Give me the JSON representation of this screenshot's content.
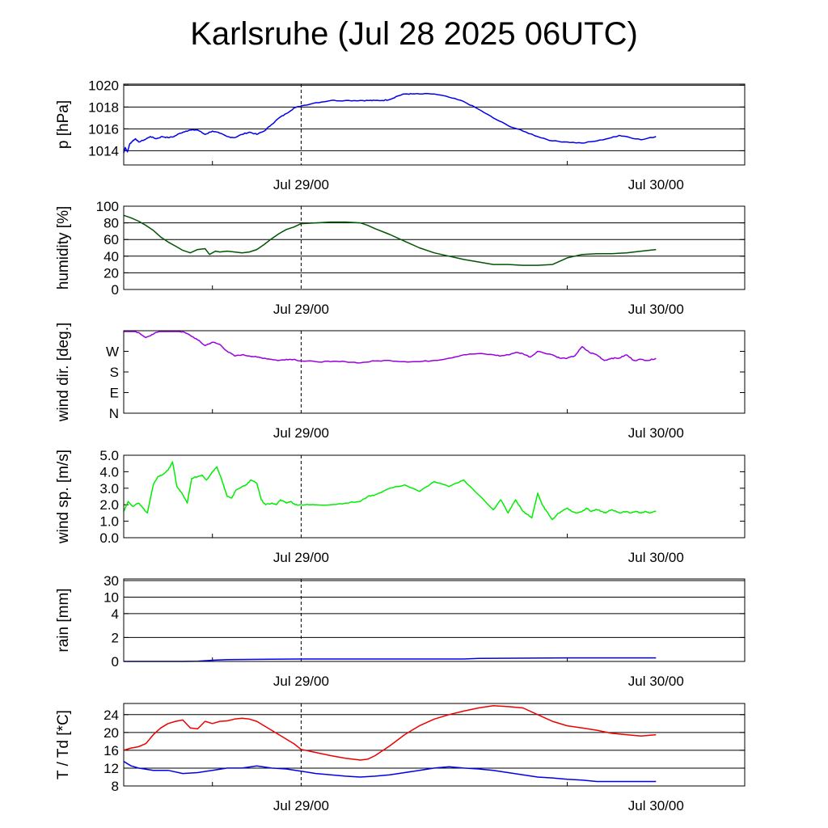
{
  "title": "Karlsruhe (Jul 28 2025 06UTC)",
  "chart_data": [
    {
      "type": "line",
      "ylabel": "p [hPa]",
      "x_labels": [
        {
          "x": 18,
          "label": "Jul 29/00"
        },
        {
          "x": 42,
          "label": "Jul 30/00"
        }
      ],
      "x_minor_ticks": [
        12,
        36
      ],
      "xlim": [
        6,
        48
      ],
      "ylim": [
        1012.7,
        1020.1
      ],
      "yticks": [
        {
          "v": 1014,
          "label": "1014"
        },
        {
          "v": 1016,
          "label": "1016"
        },
        {
          "v": 1018,
          "label": "1018"
        },
        {
          "v": 1020,
          "label": "1020"
        }
      ],
      "grid": [
        1014,
        1016,
        1018,
        1020
      ],
      "series": [
        {
          "color": "#0000ee",
          "style": "noisy",
          "x": [
            6.0,
            6.1,
            6.25,
            6.4,
            6.6,
            6.8,
            7.0,
            7.4,
            7.8,
            8.2,
            8.6,
            9.0,
            9.4,
            9.8,
            10.2,
            10.6,
            11.0,
            11.5,
            12.0,
            12.5,
            13.0,
            13.5,
            14.0,
            14.5,
            15.0,
            15.5,
            16.0,
            16.5,
            17.0,
            17.5,
            18.0,
            19.0,
            20.0,
            21.0,
            22.0,
            22.5,
            23.0,
            23.5,
            24.0,
            24.5,
            25.0,
            25.5,
            26.0,
            27.0,
            28.0,
            29.0,
            30.0,
            31.0,
            32.0,
            33.0,
            34.0,
            35.0,
            36.0,
            37.0,
            38.0,
            39.0,
            39.5,
            40.0,
            41.0,
            42.0
          ],
          "y": [
            1013.8,
            1014.3,
            1013.9,
            1014.6,
            1014.9,
            1015.1,
            1014.8,
            1015.0,
            1015.3,
            1015.1,
            1015.3,
            1015.2,
            1015.3,
            1015.6,
            1015.8,
            1015.9,
            1015.9,
            1015.5,
            1015.8,
            1015.6,
            1015.3,
            1015.2,
            1015.5,
            1015.7,
            1015.5,
            1015.8,
            1016.4,
            1017.0,
            1017.4,
            1017.9,
            1018.1,
            1018.4,
            1018.6,
            1018.6,
            1018.6,
            1018.6,
            1018.6,
            1018.6,
            1018.7,
            1019.0,
            1019.2,
            1019.2,
            1019.2,
            1019.2,
            1018.9,
            1018.5,
            1017.8,
            1017.0,
            1016.3,
            1015.8,
            1015.3,
            1014.9,
            1014.8,
            1014.7,
            1014.9,
            1015.2,
            1015.4,
            1015.3,
            1015.0,
            1015.3
          ]
        }
      ]
    },
    {
      "type": "line",
      "ylabel": "humidity [%]",
      "x_labels": [
        {
          "x": 18,
          "label": "Jul 29/00"
        },
        {
          "x": 42,
          "label": "Jul 30/00"
        }
      ],
      "x_minor_ticks": [
        12,
        36
      ],
      "xlim": [
        6,
        48
      ],
      "ylim": [
        0,
        100
      ],
      "yticks": [
        {
          "v": 0,
          "label": "0"
        },
        {
          "v": 20,
          "label": "20"
        },
        {
          "v": 40,
          "label": "40"
        },
        {
          "v": 60,
          "label": "60"
        },
        {
          "v": 80,
          "label": "80"
        },
        {
          "v": 100,
          "label": "100"
        }
      ],
      "grid": [
        20,
        40,
        60,
        80
      ],
      "series": [
        {
          "color": "#005500",
          "style": "smooth",
          "x": [
            6.0,
            6.5,
            7.0,
            7.5,
            8.0,
            8.5,
            9.0,
            9.5,
            10.0,
            10.5,
            11.0,
            11.5,
            11.8,
            12.2,
            12.5,
            13.0,
            13.5,
            14.0,
            14.5,
            15.0,
            15.5,
            16.0,
            16.5,
            17.0,
            17.5,
            18.0,
            19.0,
            20.0,
            21.0,
            22.0,
            22.5,
            23.0,
            24.0,
            25.0,
            26.0,
            27.0,
            28.0,
            29.0,
            30.0,
            31.0,
            32.0,
            33.0,
            34.0,
            35.0,
            36.0,
            37.0,
            38.0,
            39.0,
            40.0,
            41.0,
            42.0
          ],
          "y": [
            89,
            86,
            82,
            77,
            71,
            63,
            57,
            52,
            47,
            44,
            48,
            49,
            42,
            46,
            45,
            46,
            45,
            44,
            45,
            48,
            54,
            61,
            67,
            72,
            75,
            79,
            80,
            81,
            81,
            80,
            77,
            73,
            66,
            58,
            50,
            44,
            40,
            36,
            33,
            30,
            30,
            29,
            29,
            30,
            38,
            42,
            43,
            43,
            44,
            46,
            48
          ]
        }
      ]
    },
    {
      "type": "line",
      "ylabel": "wind dir. [deg.]",
      "x_labels": [
        {
          "x": 18,
          "label": "Jul 29/00"
        },
        {
          "x": 42,
          "label": "Jul 30/00"
        }
      ],
      "x_minor_ticks": [
        12,
        36
      ],
      "xlim": [
        6,
        48
      ],
      "ylim": [
        0,
        360
      ],
      "yticks": [
        {
          "v": 0,
          "label": "N"
        },
        {
          "v": 90,
          "label": "E"
        },
        {
          "v": 180,
          "label": "S"
        },
        {
          "v": 270,
          "label": "W"
        }
      ],
      "grid": [],
      "series": [
        {
          "color": "#9900dd",
          "style": "noisy",
          "x": [
            6.0,
            6.5,
            7.0,
            7.5,
            8.0,
            8.5,
            9.0,
            9.5,
            10.0,
            10.5,
            11.0,
            11.5,
            12.0,
            12.5,
            13.0,
            13.5,
            14.0,
            14.5,
            15.0,
            15.5,
            16.0,
            16.5,
            17.0,
            17.5,
            18.0,
            19.0,
            20.0,
            21.0,
            22.0,
            23.0,
            24.0,
            25.0,
            26.0,
            27.0,
            28.0,
            29.0,
            30.0,
            31.0,
            31.5,
            32.0,
            32.5,
            33.0,
            33.5,
            34.0,
            35.0,
            35.5,
            36.0,
            36.5,
            37.0,
            37.5,
            38.0,
            38.5,
            39.0,
            39.5,
            40.0,
            40.5,
            41.0,
            41.5,
            42.0
          ],
          "y": [
            370,
            362,
            352,
            330,
            345,
            360,
            365,
            360,
            355,
            340,
            320,
            295,
            310,
            300,
            270,
            250,
            255,
            250,
            245,
            240,
            235,
            230,
            235,
            235,
            228,
            225,
            225,
            225,
            220,
            228,
            230,
            225,
            225,
            230,
            240,
            255,
            260,
            255,
            250,
            255,
            265,
            260,
            245,
            270,
            255,
            240,
            240,
            250,
            290,
            265,
            255,
            230,
            240,
            240,
            255,
            230,
            235,
            230,
            240
          ]
        }
      ]
    },
    {
      "type": "line",
      "ylabel": "wind sp. [m/s]",
      "x_labels": [
        {
          "x": 18,
          "label": "Jul 29/00"
        },
        {
          "x": 42,
          "label": "Jul 30/00"
        }
      ],
      "x_minor_ticks": [
        12,
        36
      ],
      "xlim": [
        6,
        48
      ],
      "ylim": [
        0,
        5
      ],
      "yticks": [
        {
          "v": 0,
          "label": "0.0"
        },
        {
          "v": 1,
          "label": "1.0"
        },
        {
          "v": 2,
          "label": "2.0"
        },
        {
          "v": 3,
          "label": "3.0"
        },
        {
          "v": 4,
          "label": "4.0"
        },
        {
          "v": 5,
          "label": "5.0"
        }
      ],
      "grid": [],
      "series": [
        {
          "color": "#00ee00",
          "style": "noisy",
          "x": [
            6.0,
            6.3,
            6.6,
            7.0,
            7.3,
            7.6,
            8.0,
            8.3,
            8.6,
            9.0,
            9.3,
            9.6,
            10.0,
            10.3,
            10.6,
            11.0,
            11.3,
            11.6,
            12.0,
            12.3,
            12.6,
            13.0,
            13.3,
            13.6,
            14.0,
            14.3,
            14.6,
            15.0,
            15.3,
            15.6,
            16.0,
            16.3,
            16.6,
            17.0,
            17.3,
            17.6,
            18.0,
            18.5,
            19.0,
            20.0,
            21.0,
            22.0,
            22.5,
            23.0,
            24.0,
            25.0,
            26.0,
            27.0,
            28.0,
            29.0,
            30.0,
            31.0,
            31.5,
            32.0,
            32.5,
            33.0,
            33.3,
            33.6,
            34.0,
            34.3,
            34.6,
            35.0,
            35.3,
            35.6,
            36.0,
            36.3,
            36.6,
            37.0,
            37.3,
            37.6,
            38.0,
            38.3,
            38.6,
            39.0,
            39.3,
            39.6,
            40.0,
            40.3,
            40.6,
            41.0,
            41.3,
            41.6,
            42.0
          ],
          "y": [
            1.6,
            2.2,
            1.9,
            2.1,
            1.8,
            1.5,
            3.2,
            3.7,
            3.8,
            4.1,
            4.6,
            3.1,
            2.6,
            2.1,
            3.6,
            3.7,
            3.8,
            3.5,
            4.0,
            4.3,
            3.6,
            2.5,
            2.4,
            2.9,
            3.1,
            3.2,
            3.5,
            3.3,
            2.3,
            2.0,
            2.1,
            2.0,
            2.3,
            2.1,
            2.2,
            2.0,
            2.0,
            2.0,
            2.0,
            2.0,
            2.1,
            2.2,
            2.5,
            2.6,
            3.0,
            3.2,
            2.8,
            3.4,
            3.1,
            3.5,
            2.6,
            1.7,
            2.3,
            1.5,
            2.3,
            1.6,
            1.4,
            1.2,
            2.7,
            2.0,
            1.6,
            1.1,
            1.4,
            1.6,
            1.8,
            1.6,
            1.5,
            1.6,
            1.8,
            1.6,
            1.7,
            1.6,
            1.5,
            1.7,
            1.6,
            1.5,
            1.6,
            1.5,
            1.6,
            1.5,
            1.6,
            1.5,
            1.6
          ]
        }
      ]
    },
    {
      "type": "line",
      "ylabel": "rain [mm]",
      "x_labels": [
        {
          "x": 18,
          "label": "Jul 29/00"
        },
        {
          "x": 42,
          "label": "Jul 30/00"
        }
      ],
      "x_minor_ticks": [
        12,
        36
      ],
      "xlim": [
        6,
        48
      ],
      "ylim": [
        0,
        30
      ],
      "yticks": [
        {
          "v": 0,
          "label": "0"
        },
        {
          "v": 2,
          "label": "2"
        },
        {
          "v": 4,
          "label": "4"
        },
        {
          "v": 10,
          "label": "10"
        },
        {
          "v": 30,
          "label": "30"
        }
      ],
      "grid": [
        2,
        4,
        10,
        30
      ],
      "scale": "rain",
      "series": [
        {
          "color": "#0000ee",
          "style": "smooth",
          "x": [
            6,
            10,
            11,
            12,
            13,
            16,
            18,
            24,
            25,
            29,
            30,
            36,
            42
          ],
          "y": [
            0.0,
            0.0,
            0.02,
            0.1,
            0.15,
            0.18,
            0.2,
            0.2,
            0.2,
            0.2,
            0.25,
            0.3,
            0.3
          ]
        }
      ]
    },
    {
      "type": "line",
      "ylabel": "T / Td [*C]",
      "x_labels": [
        {
          "x": 18,
          "label": "Jul 29/00"
        },
        {
          "x": 42,
          "label": "Jul 30/00"
        }
      ],
      "x_minor_ticks": [
        12,
        36
      ],
      "xlim": [
        6,
        48
      ],
      "ylim": [
        8,
        26.5
      ],
      "yticks": [
        {
          "v": 8,
          "label": "8"
        },
        {
          "v": 12,
          "label": "12"
        },
        {
          "v": 16,
          "label": "16"
        },
        {
          "v": 20,
          "label": "20"
        },
        {
          "v": 24,
          "label": "24"
        }
      ],
      "grid": [
        12,
        16,
        20,
        24
      ],
      "series": [
        {
          "color": "#ee0000",
          "style": "smooth",
          "x": [
            6.0,
            6.5,
            7.0,
            7.5,
            8.0,
            8.5,
            9.0,
            9.5,
            10.0,
            10.5,
            11.0,
            11.5,
            12.0,
            12.5,
            13.0,
            13.5,
            14.0,
            14.5,
            15.0,
            15.5,
            16.0,
            16.5,
            17.0,
            17.5,
            18.0,
            19.0,
            20.0,
            21.0,
            22.0,
            22.5,
            23.0,
            24.0,
            25.0,
            26.0,
            27.0,
            28.0,
            29.0,
            30.0,
            31.0,
            32.0,
            33.0,
            34.0,
            35.0,
            36.0,
            37.0,
            38.0,
            39.0,
            40.0,
            41.0,
            42.0
          ],
          "y": [
            16.0,
            16.5,
            16.8,
            17.5,
            19.5,
            21.0,
            22.0,
            22.5,
            22.8,
            21.0,
            20.8,
            22.5,
            22.0,
            22.5,
            22.6,
            23.0,
            23.2,
            23.0,
            22.5,
            21.5,
            20.5,
            19.5,
            18.5,
            17.5,
            16.2,
            15.5,
            14.8,
            14.2,
            13.8,
            14.0,
            14.8,
            17.0,
            19.5,
            21.5,
            23.0,
            24.0,
            24.8,
            25.5,
            26.0,
            25.8,
            25.5,
            24.0,
            22.5,
            21.5,
            21.0,
            20.5,
            19.8,
            19.5,
            19.2,
            19.5
          ]
        },
        {
          "color": "#0000ee",
          "style": "smooth",
          "x": [
            6.0,
            6.5,
            7.0,
            8.0,
            9.0,
            10.0,
            11.0,
            12.0,
            13.0,
            14.0,
            15.0,
            16.0,
            17.0,
            18.0,
            19.0,
            20.0,
            21.0,
            22.0,
            23.0,
            24.0,
            25.0,
            26.0,
            27.0,
            28.0,
            29.0,
            30.0,
            31.0,
            32.0,
            33.0,
            34.0,
            35.0,
            36.0,
            37.0,
            38.0,
            39.0,
            40.0,
            41.0,
            42.0
          ],
          "y": [
            13.5,
            12.5,
            12.0,
            11.5,
            11.5,
            10.8,
            11.0,
            11.5,
            12.0,
            12.0,
            12.5,
            12.0,
            11.8,
            11.3,
            10.8,
            10.5,
            10.2,
            10.0,
            10.2,
            10.5,
            11.0,
            11.5,
            12.0,
            12.3,
            12.0,
            11.8,
            11.5,
            11.0,
            10.5,
            10.0,
            9.8,
            9.5,
            9.3,
            9.0,
            9.0,
            9.0,
            9.0,
            9.0
          ]
        }
      ]
    }
  ]
}
